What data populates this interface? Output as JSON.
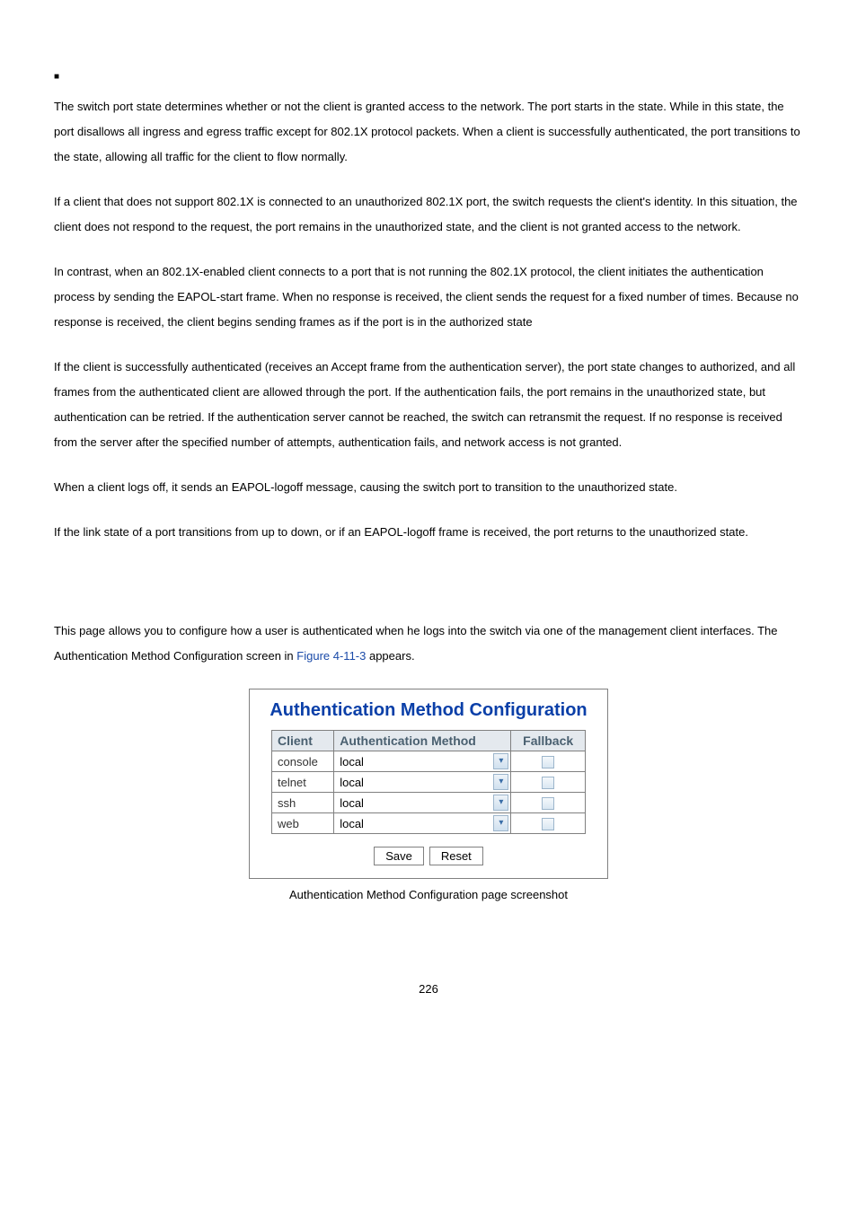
{
  "bullet_marker": "■",
  "paragraphs": {
    "p1": "The switch port state determines whether or not the client is granted access to the network. The port starts in the state. While in this state, the port disallows all ingress and egress traffic except for 802.1X protocol packets. When a client is successfully authenticated, the port transitions to the              state, allowing all traffic for the client to flow normally.",
    "p2": "If a client that does not support 802.1X is connected to an unauthorized 802.1X port, the switch requests the client's identity. In this situation, the client does not respond to the request, the port remains in the unauthorized state, and the client is not granted access to the network.",
    "p3": "In contrast, when an 802.1X-enabled client connects to a port that is not running the 802.1X protocol, the client initiates the authentication process by sending the EAPOL-start frame. When no response is received, the client sends the request for a fixed number of times. Because no response is received, the client begins sending frames as if the port is in the authorized state",
    "p4": "If the client is successfully authenticated (receives an Accept frame from the authentication server), the port state changes to authorized, and all frames from the authenticated client are allowed through the port. If the authentication fails, the port remains in the unauthorized state, but authentication can be retried. If the authentication server cannot be reached, the switch can retransmit the request. If no response is received from the server after the specified number of attempts, authentication fails, and network access is not granted.",
    "p5": "When a client logs off, it sends an EAPOL-logoff message, causing the switch port to transition to the unauthorized state.",
    "p6": "If the link state of a port transitions from up to down, or if an EAPOL-logoff frame is received, the port returns to the unauthorized state.",
    "p7a": "This page allows you to configure how a user is authenticated when he logs into the switch via one of the management client interfaces. The Authentication Method Configuration screen in ",
    "p7b": "Figure 4-11-3",
    "p7c": " appears."
  },
  "config": {
    "title": "Authentication Method Configuration",
    "headers": {
      "client": "Client",
      "method": "Authentication Method",
      "fallback": "Fallback"
    },
    "rows": [
      {
        "client": "console",
        "method": "local"
      },
      {
        "client": "telnet",
        "method": "local"
      },
      {
        "client": "ssh",
        "method": "local"
      },
      {
        "client": "web",
        "method": "local"
      }
    ],
    "buttons": {
      "save": "Save",
      "reset": "Reset"
    }
  },
  "caption": "Authentication Method Configuration page screenshot",
  "page_number": "226"
}
